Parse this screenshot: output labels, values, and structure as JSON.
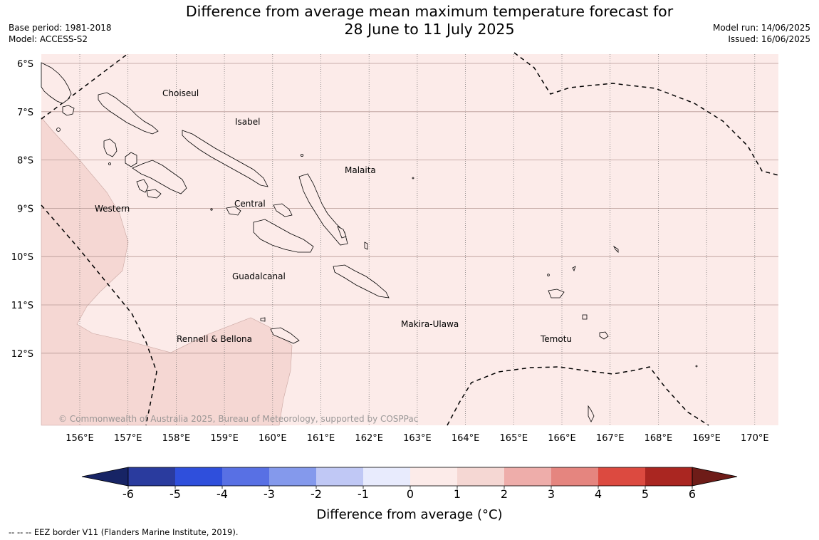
{
  "header": {
    "title_line1": "Difference from average mean maximum temperature forecast for",
    "title_line2": "28 June to 11 July 2025",
    "base_period": "Base period: 1981-2018",
    "model": "Model: ACCESS-S2",
    "model_run": "Model run: 14/06/2025",
    "issued": "Issued: 16/06/2025"
  },
  "map": {
    "lat_labels": [
      "6°S",
      "7°S",
      "8°S",
      "9°S",
      "10°S",
      "11°S",
      "12°S"
    ],
    "lon_labels": [
      "156°E",
      "157°E",
      "158°E",
      "159°E",
      "160°E",
      "161°E",
      "162°E",
      "163°E",
      "164°E",
      "165°E",
      "166°E",
      "167°E",
      "168°E",
      "169°E",
      "170°E"
    ],
    "regions": [
      {
        "id": "choiseul",
        "name": "Choiseul"
      },
      {
        "id": "isabel",
        "name": "Isabel"
      },
      {
        "id": "malaita",
        "name": "Malaita"
      },
      {
        "id": "western",
        "name": "Western"
      },
      {
        "id": "central",
        "name": "Central"
      },
      {
        "id": "guadalcanal",
        "name": "Guadalcanal"
      },
      {
        "id": "makira",
        "name": "Makira-Ulawa"
      },
      {
        "id": "rennell",
        "name": "Rennell & Bellona"
      },
      {
        "id": "temotu",
        "name": "Temotu"
      }
    ],
    "copyright": "© Commonwealth of Australia 2025, Bureau of Meteorology, supported by COSPPac",
    "colors": {
      "anomaly_0_1": "#fcebe9",
      "anomaly_1_2": "#f5d7d3"
    }
  },
  "colorbar": {
    "tick_labels": [
      "-6",
      "-5",
      "-4",
      "-3",
      "-2",
      "-1",
      "0",
      "1",
      "2",
      "3",
      "4",
      "5",
      "6"
    ],
    "label": "Difference from average (°C)",
    "under_color": "#172465",
    "over_color": "#6e1c18",
    "colors": [
      "#2a3b9e",
      "#2f4fdc",
      "#5870e4",
      "#8499ec",
      "#c0c8f5",
      "#e8ebfd",
      "#fcebe9",
      "#f5d7d3",
      "#eeadaa",
      "#e5857f",
      "#dc4a40",
      "#aa2621"
    ]
  },
  "footnote": "--  --  -- EEZ border V11 (Flanders Marine Institute, 2019)."
}
